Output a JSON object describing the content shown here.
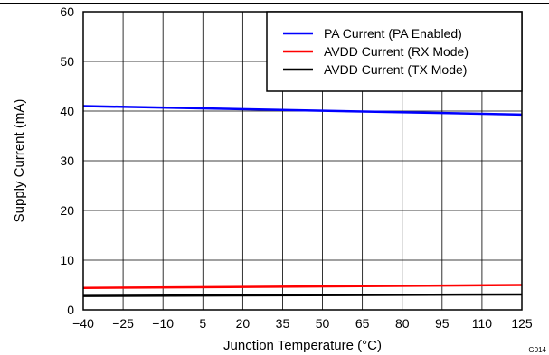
{
  "chart_data": {
    "type": "line",
    "xlabel": "Junction Temperature (°C)",
    "ylabel": "Supply Current (mA)",
    "xlim": [
      -40,
      125
    ],
    "ylim": [
      0,
      60
    ],
    "x_ticks": [
      "−40",
      "−25",
      "−10",
      "5",
      "20",
      "35",
      "50",
      "65",
      "80",
      "95",
      "110",
      "125"
    ],
    "y_ticks": [
      "0",
      "10",
      "20",
      "30",
      "40",
      "50",
      "60"
    ],
    "grid": true,
    "legend_position": "top-right",
    "figure_id": "G014",
    "series": [
      {
        "name": "PA Current (PA Enabled)",
        "color": "#0000ff",
        "x": [
          -40,
          125
        ],
        "y": [
          41.0,
          39.3
        ]
      },
      {
        "name": "AVDD Current (RX Mode)",
        "color": "#ff0000",
        "x": [
          -40,
          125
        ],
        "y": [
          4.4,
          5.0
        ]
      },
      {
        "name": "AVDD Current (TX Mode)",
        "color": "#000000",
        "x": [
          -40,
          125
        ],
        "y": [
          2.8,
          3.1
        ]
      }
    ]
  }
}
